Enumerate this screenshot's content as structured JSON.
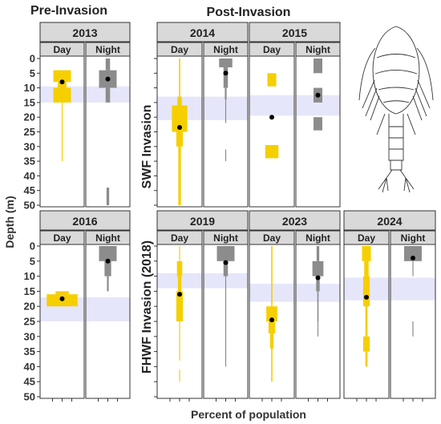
{
  "figure": {
    "pre_header": "Pre-Invasion",
    "post_header": "Post-Invasion",
    "ylabel": "Depth (m)",
    "xlabel": "Percent of population",
    "row_label_1": "SWF Invasion",
    "row_label_2": "FHWF Invasion (2018)",
    "day_label": "Day",
    "night_label": "Night",
    "y_ticks": [
      0,
      5,
      10,
      15,
      20,
      25,
      30,
      35,
      40,
      45,
      50
    ],
    "colors": {
      "day": "#f5cf00",
      "night": "#8c8c8c",
      "band": "#e6e6fa",
      "strip": "#d9d9d9"
    },
    "illustration": "copepod-illustration"
  },
  "chart_data": [
    {
      "type": "kite-bar",
      "year": "2013",
      "ylim": [
        0,
        50
      ],
      "band": [
        9.5,
        15
      ],
      "day": {
        "mean": 8,
        "bars": [
          [
            4,
            8,
            4
          ],
          [
            8,
            10,
            2
          ],
          [
            10,
            15,
            4
          ],
          [
            15,
            35,
            0.2
          ]
        ]
      },
      "night": {
        "mean": 7,
        "bars": [
          [
            0,
            4,
            1
          ],
          [
            4,
            10,
            4
          ],
          [
            10,
            15,
            1
          ],
          [
            44,
            50,
            0.6
          ]
        ]
      }
    },
    {
      "type": "kite-bar",
      "year": "2014",
      "ylim": [
        0,
        50
      ],
      "band": [
        13,
        21
      ],
      "day": {
        "mean": 23.5,
        "bars": [
          [
            0,
            13,
            0.3
          ],
          [
            13,
            16,
            1
          ],
          [
            16,
            25,
            3.5
          ],
          [
            25,
            30,
            1.5
          ],
          [
            30,
            50,
            0.6
          ]
        ]
      },
      "night": {
        "mean": 5,
        "bars": [
          [
            0,
            3,
            3
          ],
          [
            3,
            10,
            1
          ],
          [
            10,
            14,
            0.4
          ],
          [
            14,
            22,
            0.1
          ],
          [
            31,
            35,
            0.1
          ]
        ]
      }
    },
    {
      "type": "kite-bar",
      "year": "2015",
      "ylim": [
        0,
        50
      ],
      "band": [
        12.5,
        19.5
      ],
      "day": {
        "mean": 20,
        "bars": [
          [
            5,
            9.5,
            2
          ],
          [
            29.5,
            34,
            3
          ]
        ]
      },
      "night": {
        "mean": 12.5,
        "bars": [
          [
            0,
            5,
            2
          ],
          [
            10,
            15,
            2
          ],
          [
            20,
            24.5,
            2
          ]
        ]
      }
    },
    {
      "type": "kite-bar",
      "year": "2016",
      "ylim": [
        0,
        50
      ],
      "band": [
        17,
        25
      ],
      "day": {
        "mean": 17.5,
        "bars": [
          [
            15,
            16,
            3
          ],
          [
            16,
            20,
            7
          ]
        ]
      },
      "night": {
        "mean": 5,
        "bars": [
          [
            0,
            5,
            4
          ],
          [
            5,
            10,
            1.5
          ],
          [
            10,
            15,
            0.4
          ]
        ]
      }
    },
    {
      "type": "kite-bar",
      "year": "2019",
      "ylim": [
        0,
        50
      ],
      "band": [
        9,
        14
      ],
      "day": {
        "mean": 16,
        "bars": [
          [
            0,
            5,
            0.2
          ],
          [
            5,
            10,
            1.2
          ],
          [
            10,
            15,
            0.8
          ],
          [
            15,
            25,
            1.5
          ],
          [
            25,
            38,
            0.2
          ],
          [
            41,
            45,
            0.1
          ]
        ]
      },
      "night": {
        "mean": 5.5,
        "bars": [
          [
            0,
            5,
            4
          ],
          [
            5,
            10,
            1
          ],
          [
            10,
            40,
            0.05
          ]
        ]
      }
    },
    {
      "type": "kite-bar",
      "year": "2023",
      "ylim": [
        0,
        50
      ],
      "band": [
        12.5,
        18.5
      ],
      "day": {
        "mean": 24.5,
        "bars": [
          [
            0,
            20,
            0.3
          ],
          [
            20,
            25,
            2.5
          ],
          [
            25,
            29,
            1.5
          ],
          [
            29,
            34,
            0.8
          ],
          [
            34,
            45,
            0.3
          ]
        ]
      },
      "night": {
        "mean": 10.5,
        "bars": [
          [
            0,
            5,
            0.6
          ],
          [
            5,
            10,
            2.5
          ],
          [
            10,
            15,
            0.8
          ],
          [
            15,
            20,
            0.3
          ],
          [
            20,
            25,
            0.3
          ],
          [
            25,
            30,
            0.2
          ]
        ]
      }
    },
    {
      "type": "kite-bar",
      "year": "2024",
      "ylim": [
        0,
        50
      ],
      "band": [
        10.5,
        18
      ],
      "day": {
        "mean": 17,
        "bars": [
          [
            0,
            5,
            2
          ],
          [
            5,
            10,
            1
          ],
          [
            10,
            20,
            1.5
          ],
          [
            20,
            30,
            0.5
          ],
          [
            30,
            35,
            1.5
          ],
          [
            35,
            40,
            0.5
          ]
        ]
      },
      "night": {
        "mean": 4,
        "bars": [
          [
            0,
            5,
            4
          ],
          [
            5,
            10,
            0.2
          ],
          [
            25,
            30,
            0.2
          ]
        ]
      }
    }
  ]
}
